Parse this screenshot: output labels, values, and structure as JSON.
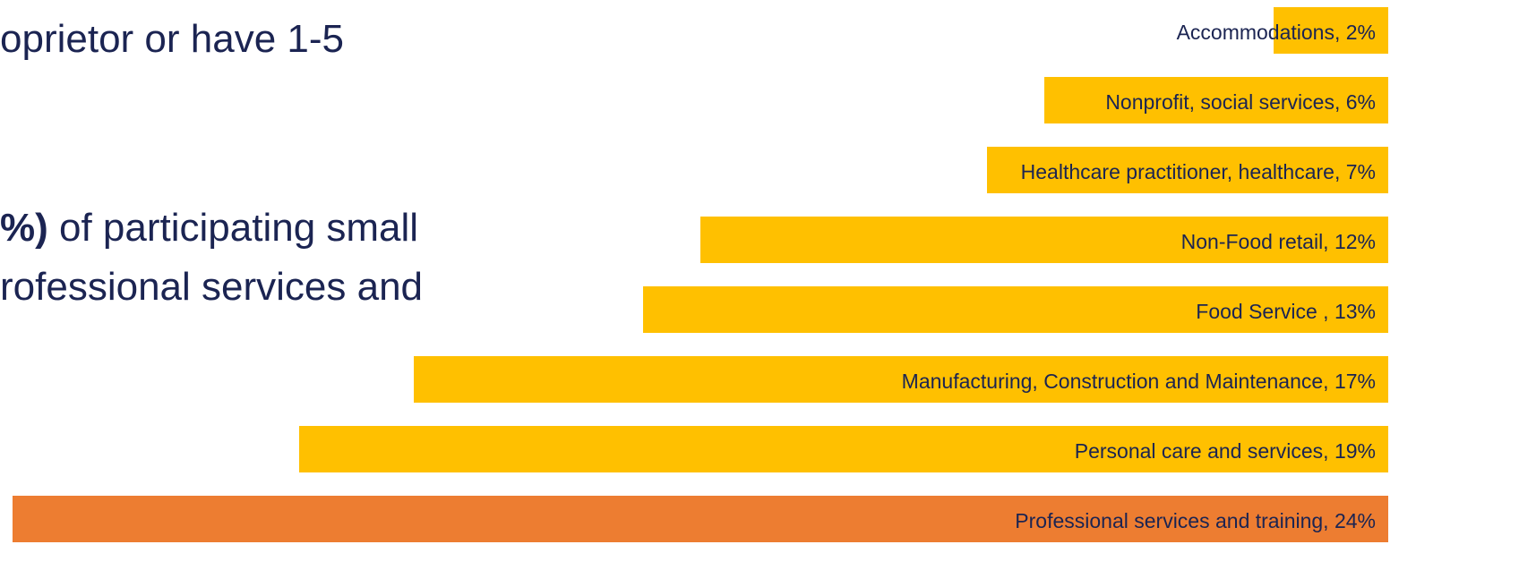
{
  "slide_text": {
    "line1": "oprietor  or have 1-5",
    "line2_bold": "%)",
    "line2_rest": " of participating small",
    "line3": "rofessional services and"
  },
  "colors": {
    "bar_default": "#FFC000",
    "bar_highlight": "#ED7D31",
    "text": "#1B2452"
  },
  "chart_data": {
    "type": "bar",
    "orientation": "horizontal",
    "xlim": [
      0,
      24
    ],
    "grid": false,
    "legend": "none",
    "categories": [
      "Accommodations",
      "Nonprofit, social services",
      "Healthcare practitioner, healthcare",
      "Non-Food retail",
      "Food Service ",
      "Manufacturing, Construction and Maintenance",
      "Personal care and services",
      "Professional services and training"
    ],
    "values": [
      2,
      6,
      7,
      12,
      13,
      17,
      19,
      24
    ],
    "labels": [
      "Accommodations, 2%",
      "Nonprofit, social services, 6%",
      "Healthcare practitioner, healthcare, 7%",
      "Non-Food retail, 12%",
      "Food Service , 13%",
      "Manufacturing, Construction and Maintenance, 17%",
      "Personal care and services, 19%",
      "Professional services and training, 24%"
    ],
    "highlight": [
      false,
      false,
      false,
      false,
      false,
      false,
      false,
      true
    ]
  }
}
